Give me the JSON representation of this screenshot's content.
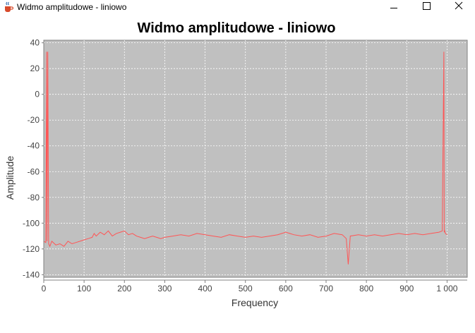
{
  "window": {
    "title": "Widmo amplitudowe - liniowo",
    "app_icon": "java-cup-icon",
    "controls": [
      "minimize-icon",
      "maximize-icon",
      "close-icon"
    ]
  },
  "chart_data": {
    "type": "line",
    "title": "Widmo amplitudowe - liniowo",
    "xlabel": "Frequency",
    "ylabel": "Amplitude",
    "xlim": [
      0,
      1050
    ],
    "ylim": [
      -142,
      42
    ],
    "xticks": [
      0,
      100,
      200,
      300,
      400,
      500,
      600,
      700,
      800,
      900,
      1000
    ],
    "xtick_labels": [
      "0",
      "100",
      "200",
      "300",
      "400",
      "500",
      "600",
      "700",
      "800",
      "900",
      "1 000"
    ],
    "yticks": [
      40,
      20,
      0,
      -20,
      -40,
      -60,
      -80,
      -100,
      -120,
      -140
    ],
    "ytick_labels": [
      "40",
      "20",
      "0",
      "-20",
      "-40",
      "-60",
      "-80",
      "-100",
      "-120",
      "-140"
    ],
    "grid": true,
    "plot_background": "#c0c0c0",
    "series": [
      {
        "color": "#ff5555",
        "x": [
          0,
          5,
          7,
          8,
          10,
          12,
          15,
          20,
          30,
          40,
          50,
          60,
          70,
          80,
          90,
          100,
          110,
          120,
          125,
          130,
          140,
          150,
          160,
          170,
          180,
          190,
          200,
          210,
          220,
          230,
          240,
          250,
          260,
          270,
          280,
          290,
          300,
          320,
          340,
          360,
          380,
          400,
          420,
          440,
          460,
          480,
          500,
          520,
          540,
          560,
          580,
          600,
          610,
          620,
          640,
          660,
          680,
          700,
          720,
          740,
          750,
          755,
          760,
          780,
          800,
          820,
          840,
          860,
          880,
          900,
          920,
          940,
          960,
          980,
          988,
          992,
          993,
          994,
          996,
          1000
        ],
        "y": [
          -114,
          -115,
          33,
          -114,
          33,
          -116,
          -118,
          -114,
          -117,
          -116,
          -118,
          -114,
          -116,
          -115,
          -114,
          -113,
          -112,
          -111,
          -108,
          -110,
          -107,
          -109,
          -106,
          -110,
          -108,
          -107,
          -106,
          -109,
          -108,
          -110,
          -111,
          -112,
          -111,
          -110,
          -111,
          -112,
          -111,
          -110,
          -109,
          -110,
          -108,
          -109,
          -110,
          -111,
          -109,
          -110,
          -111,
          -110,
          -111,
          -110,
          -109,
          -107,
          -108,
          -109,
          -110,
          -109,
          -111,
          -110,
          -108,
          -109,
          -112,
          -132,
          -110,
          -109,
          -110,
          -109,
          -110,
          -109,
          -108,
          -109,
          -108,
          -109,
          -108,
          -107,
          -106,
          33,
          -107,
          -106,
          -108,
          -109
        ]
      }
    ]
  }
}
